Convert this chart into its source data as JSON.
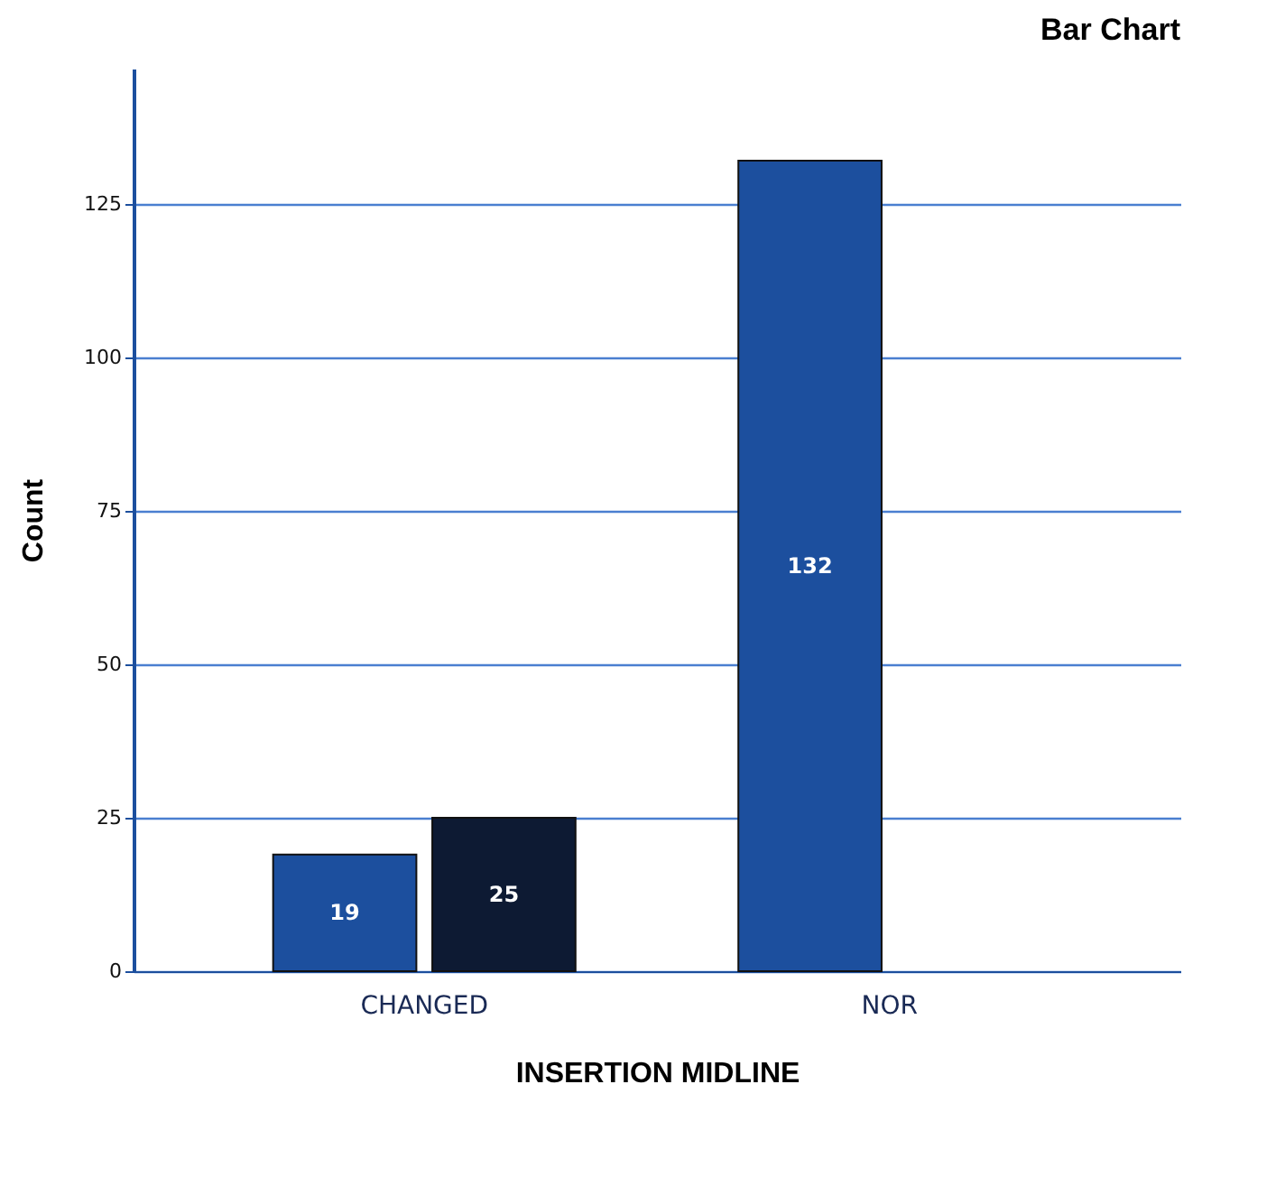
{
  "chart_data": {
    "type": "bar",
    "title": "Bar Chart",
    "xlabel": "INSERTION MIDLINE",
    "ylabel": "Count",
    "categories": [
      "CHANGED",
      "NOR"
    ],
    "series": [
      {
        "color": "#1c4f9e",
        "values": [
          19,
          132
        ]
      },
      {
        "color": "#0d1a33",
        "values": [
          25,
          null
        ]
      }
    ],
    "ylim": [
      0,
      147
    ],
    "yticks": [
      0,
      25,
      50,
      75,
      100,
      125
    ],
    "grid": "y",
    "data_labels": true
  }
}
